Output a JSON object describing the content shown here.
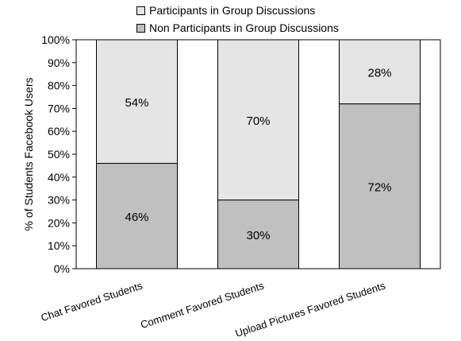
{
  "chart_data": {
    "type": "bar",
    "stacked": true,
    "percent_stacked": true,
    "title": "",
    "xlabel": "",
    "ylabel": "% of Students Facebook Users",
    "ylim": [
      0,
      100
    ],
    "yticks": [
      "0%",
      "10%",
      "20%",
      "30%",
      "40%",
      "50%",
      "60%",
      "70%",
      "80%",
      "90%",
      "100%"
    ],
    "grid": false,
    "legend_position": "top",
    "categories": [
      "Chat Favored Students",
      "Comment Favored Students",
      "Upload Pictures Favored Students"
    ],
    "series": [
      {
        "name": "Non Participants in Group Discussions",
        "values": [
          46,
          30,
          72
        ],
        "labels": [
          "46%",
          "30%",
          "72%"
        ],
        "color": "#c0c0c0"
      },
      {
        "name": "Participants in Group Discussions",
        "values": [
          54,
          70,
          28
        ],
        "labels": [
          "54%",
          "70%",
          "28%"
        ],
        "color": "#e5e5e5"
      }
    ]
  }
}
